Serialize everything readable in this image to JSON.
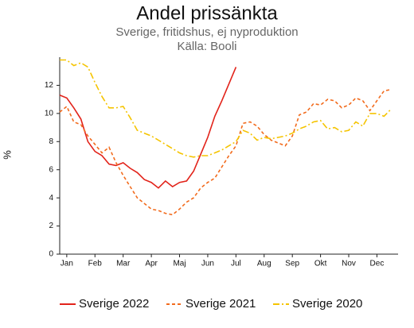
{
  "chart_data": {
    "type": "line",
    "title": "Andel prissänkta",
    "subtitle": "Sverige, fritidshus, ej nyproduktion",
    "source": "Källa: Booli",
    "y_label": "%",
    "categories": [
      null,
      "Jan",
      null,
      null,
      null,
      "Feb",
      null,
      null,
      null,
      "Mar",
      null,
      null,
      null,
      "Apr",
      null,
      null,
      null,
      "Maj",
      null,
      null,
      null,
      "Jun",
      null,
      null,
      null,
      "Jul",
      null,
      null,
      null,
      "Aug",
      null,
      null,
      null,
      "Sep",
      null,
      null,
      null,
      "Okt",
      null,
      null,
      null,
      "Nov",
      null,
      null,
      null,
      "Dec",
      null,
      null
    ],
    "ylim": [
      0,
      14
    ],
    "yticks": [
      0,
      2,
      4,
      6,
      8,
      10,
      12
    ],
    "legend": "bottom",
    "series": [
      {
        "name": "Sverige 2022",
        "color": "#e2231a",
        "style": "solid",
        "values": [
          11.3,
          11.1,
          10.4,
          9.6,
          8.0,
          7.3,
          7.0,
          6.4,
          6.3,
          6.5,
          6.1,
          5.8,
          5.3,
          5.1,
          4.7,
          5.2,
          4.8,
          5.1,
          5.2,
          5.9,
          7.1,
          8.3,
          9.8,
          10.9,
          12.1,
          13.3,
          null,
          null,
          null,
          null,
          null,
          null,
          null,
          null,
          null,
          null,
          null,
          null,
          null,
          null,
          null,
          null,
          null,
          null,
          null,
          null,
          null,
          null
        ]
      },
      {
        "name": "Sverige 2021",
        "color": "#f26b1d",
        "style": "dashed",
        "values": [
          10.1,
          10.5,
          9.4,
          9.2,
          8.4,
          7.8,
          7.2,
          7.6,
          6.5,
          5.6,
          4.8,
          4.0,
          3.6,
          3.2,
          3.1,
          2.9,
          2.8,
          3.2,
          3.7,
          4.0,
          4.7,
          5.1,
          5.4,
          6.2,
          7.0,
          7.7,
          9.3,
          9.4,
          9.1,
          8.5,
          8.1,
          7.9,
          7.7,
          8.4,
          9.9,
          10.1,
          10.7,
          10.6,
          11.0,
          10.9,
          10.4,
          10.6,
          11.1,
          10.9,
          10.2,
          10.9,
          11.6,
          11.7
        ]
      },
      {
        "name": "Sverige 2020",
        "color": "#f5c400",
        "style": "dashdot",
        "values": [
          13.8,
          13.8,
          13.4,
          13.6,
          13.3,
          12.2,
          11.2,
          10.4,
          10.4,
          10.5,
          9.7,
          8.8,
          8.6,
          8.4,
          8.1,
          7.8,
          7.5,
          7.2,
          7.0,
          6.9,
          7.0,
          7.0,
          7.2,
          7.4,
          7.7,
          8.0,
          8.8,
          8.6,
          8.1,
          8.3,
          8.2,
          8.3,
          8.4,
          8.6,
          8.9,
          9.1,
          9.4,
          9.5,
          8.9,
          9.0,
          8.7,
          8.8,
          9.4,
          9.1,
          10.0,
          10.0,
          9.8,
          10.3
        ]
      }
    ]
  }
}
